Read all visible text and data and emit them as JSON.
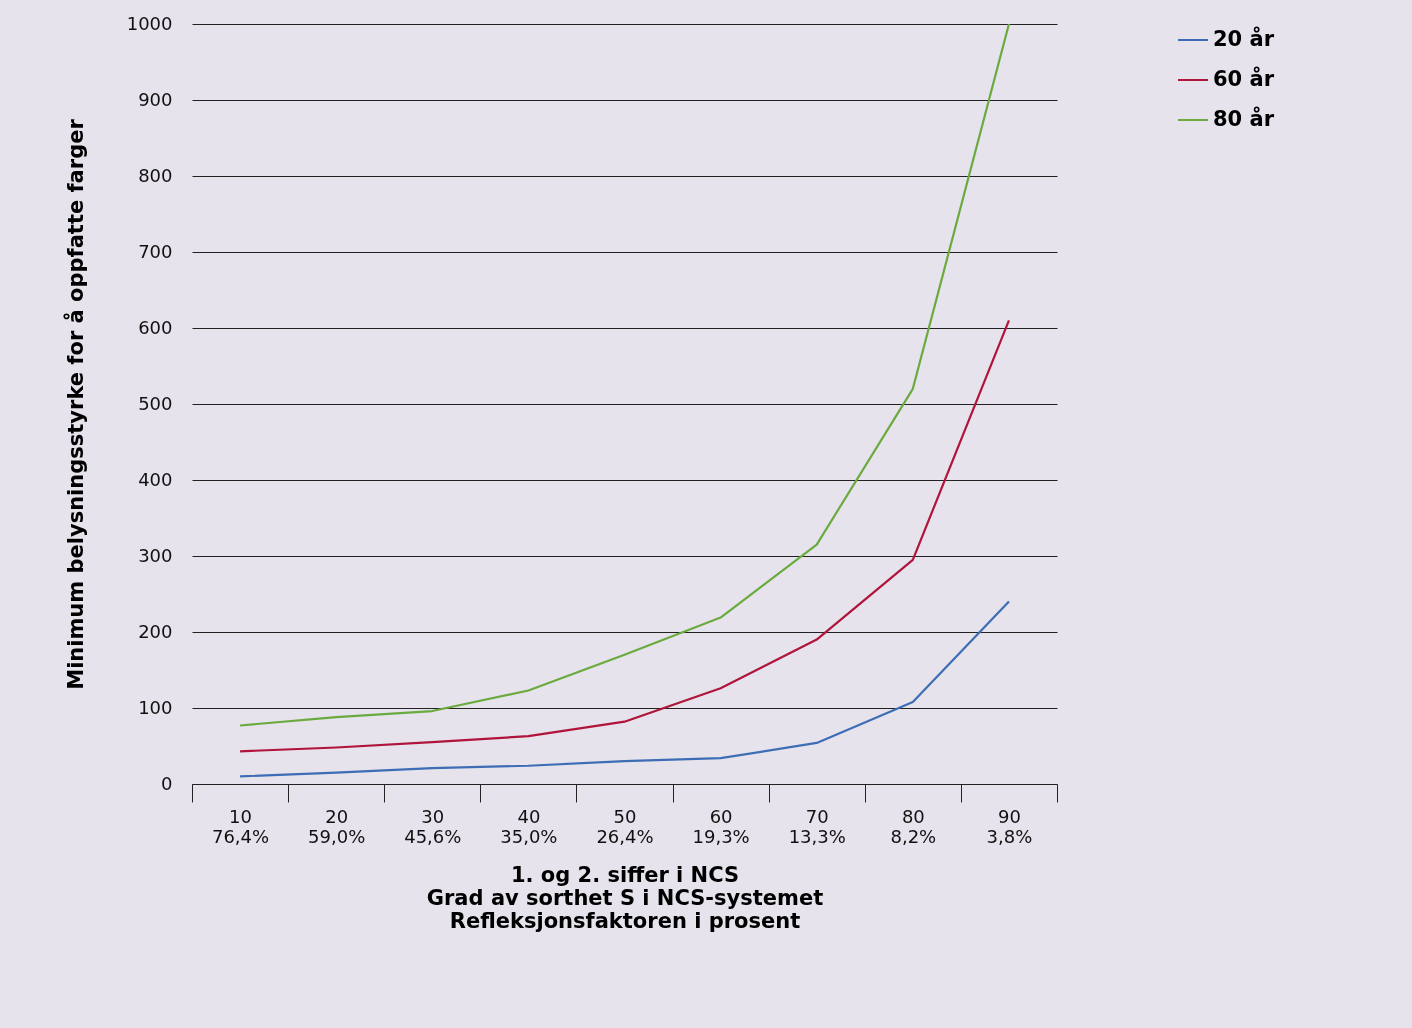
{
  "chart_data": {
    "type": "line",
    "xlabel": "1. og 2. siffer i NCS\nGrad av sorthet S i NCS-systemet\nRefleksjonsfaktoren i prosent",
    "ylabel": "Minimum belysningsstyrke for å oppfatte farger",
    "categories": [
      "10\n76,4%",
      "20\n59,0%",
      "30\n45,6%",
      "40\n35,0%",
      "50\n26,4%",
      "60\n19,3%",
      "70\n13,3%",
      "80\n8,2%",
      "90\n3,8%"
    ],
    "series": [
      {
        "name": "20 år",
        "color": "#3d6db5",
        "values": [
          10,
          15,
          21,
          24,
          30,
          34,
          54,
          108,
          240
        ]
      },
      {
        "name": "60 år",
        "color": "#b0143a",
        "values": [
          43,
          48,
          55,
          63,
          82,
          126,
          190,
          295,
          610
        ]
      },
      {
        "name": "80 år",
        "color": "#6aaa3f",
        "values": [
          77,
          88,
          96,
          123,
          170,
          219,
          315,
          520,
          1000
        ]
      }
    ],
    "ylim": [
      0,
      1000
    ],
    "yticks": [
      0,
      100,
      200,
      300,
      400,
      500,
      600,
      700,
      800,
      900,
      1000
    ],
    "grid": "y",
    "legend": "top right",
    "marker": "none",
    "line_style": "solid"
  }
}
